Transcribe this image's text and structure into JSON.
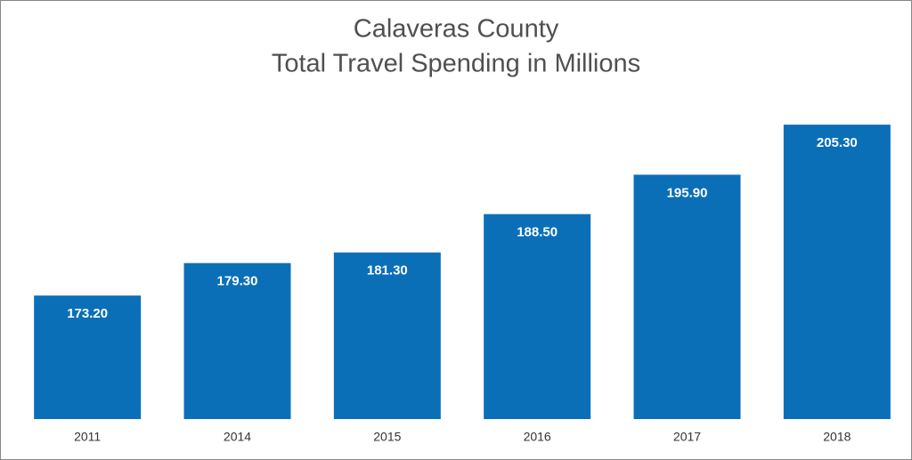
{
  "chart_data": {
    "type": "bar",
    "title": "Calaveras County",
    "subtitle": "Total Travel Spending in Millions",
    "categories": [
      "2011",
      "2014",
      "2015",
      "2016",
      "2017",
      "2018"
    ],
    "values": [
      173.2,
      179.3,
      181.3,
      188.5,
      195.9,
      205.3
    ],
    "value_labels": [
      "173.20",
      "179.30",
      "181.30",
      "188.50",
      "195.90",
      "205.30"
    ],
    "color": "#0b6fb8",
    "ylim": [
      150,
      210
    ]
  }
}
